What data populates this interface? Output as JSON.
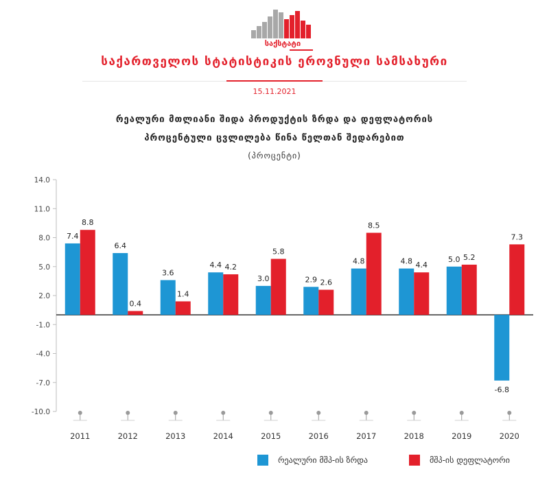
{
  "header": {
    "logo_text": "საქსტატი",
    "org_name": "საქართველოს სტატისტიკის ეროვნული სამსახური",
    "date": "15.11.2021"
  },
  "colors": {
    "accent": "#e3202b",
    "series_growth": "#1e96d4",
    "series_deflator": "#e3202b",
    "logo_grey": "#a8a8a8"
  },
  "chart_data": {
    "type": "bar",
    "title_line1": "რეალური მთლიანი შიდა პროდუქტის ზრდა და დეფლატორის",
    "title_line2": "პროცენტული ცვლილება წინა წელთან შედარებით",
    "subtitle": "(პროცენტი)",
    "categories": [
      "2011",
      "2012",
      "2013",
      "2014",
      "2015",
      "2016",
      "2017",
      "2018",
      "2019",
      "2020"
    ],
    "series": [
      {
        "name": "რეალური მშპ-ის ზრდა",
        "values": [
          7.4,
          6.4,
          3.6,
          4.4,
          3.0,
          2.9,
          4.8,
          4.8,
          5.0,
          -6.8
        ]
      },
      {
        "name": "მშპ-ის დეფლატორი",
        "values": [
          8.8,
          0.4,
          1.4,
          4.2,
          5.8,
          2.6,
          8.5,
          4.4,
          5.2,
          7.3
        ]
      }
    ],
    "ylim": [
      -10.0,
      14.0
    ],
    "yticks": [
      "14.0",
      "11.0",
      "8.0",
      "5.0",
      "2.0",
      "-1.0",
      "-4.0",
      "-7.0",
      "-10.0"
    ],
    "value_labels": [
      [
        "7.4",
        "6.4",
        "3.6",
        "4.4",
        "3.0",
        "2.9",
        "4.8",
        "4.8",
        "5.0",
        "-6.8"
      ],
      [
        "8.8",
        "0.4",
        "1.4",
        "4.2",
        "5.8",
        "2.6",
        "8.5",
        "4.4",
        "5.2",
        "7.3"
      ]
    ],
    "grid": false,
    "legend_position": "bottom"
  }
}
